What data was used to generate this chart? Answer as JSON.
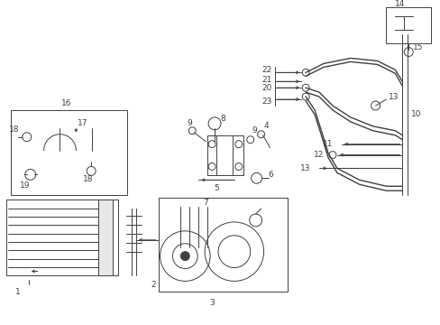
{
  "bg_color": "#ffffff",
  "line_color": "#404040",
  "figsize": [
    4.89,
    3.6
  ],
  "dpi": 100,
  "lw": 0.7
}
